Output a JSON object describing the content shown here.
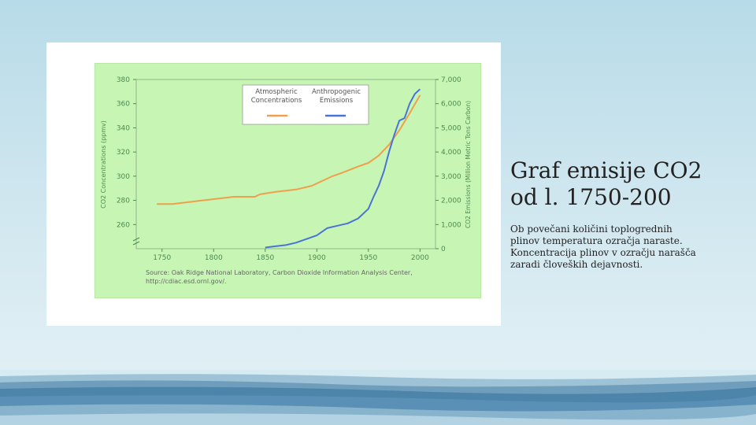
{
  "slide": {
    "title_line1": " Graf emisije CO2",
    "title_line2": "od l. 1750-200",
    "body": " Ob povečani količini toplogrednih\nplinov temperatura ozračja naraste.\nKoncentracija plinov v ozračju narašča\nzaradi človeških dejavnosti."
  },
  "chart_data": {
    "type": "line",
    "xlabel": "",
    "ylabel": "CO2 Concentrations (ppmv)",
    "y2label": "CO2 Emissions (Million Metric Tons Carbon)",
    "xlim": [
      1725,
      2015
    ],
    "ylim": [
      240,
      380
    ],
    "y2lim": [
      0,
      7000
    ],
    "x_ticks": [
      "1750",
      "1800",
      "1850",
      "1900",
      "1950",
      "2000"
    ],
    "y_ticks": [
      "380",
      "360",
      "340",
      "320",
      "300",
      "280",
      "260"
    ],
    "y2_ticks": [
      "7,000",
      "6,000",
      "5,000",
      "4,000",
      "3,000",
      "2,000",
      "1,000",
      "0"
    ],
    "legend": {
      "col1": "Atmospheric\nConcentrations",
      "col2": "Anthropogenic\nEmissions",
      "placement": "top-right"
    },
    "series": [
      {
        "name": "Atmospheric Concentrations",
        "axis": "left",
        "color": "#f0a04a",
        "x": [
          1745,
          1760,
          1780,
          1800,
          1820,
          1840,
          1845,
          1860,
          1880,
          1895,
          1905,
          1915,
          1925,
          1940,
          1950,
          1960,
          1970,
          1980,
          1990,
          2000
        ],
        "y": [
          277,
          277,
          279,
          281,
          283,
          283,
          285,
          287,
          289,
          292,
          296,
          300,
          303,
          308,
          311,
          317,
          326,
          338,
          352,
          367
        ]
      },
      {
        "name": "Anthropogenic Emissions",
        "axis": "right",
        "color": "#4a73d8",
        "x": [
          1850,
          1860,
          1870,
          1880,
          1890,
          1900,
          1910,
          1920,
          1930,
          1940,
          1950,
          1955,
          1960,
          1965,
          1970,
          1975,
          1980,
          1985,
          1990,
          1995,
          2000
        ],
        "y": [
          50,
          100,
          150,
          250,
          400,
          550,
          850,
          950,
          1050,
          1250,
          1650,
          2150,
          2600,
          3200,
          4000,
          4700,
          5300,
          5400,
          6000,
          6400,
          6600
        ]
      }
    ],
    "source_line1": "Source: Oak Ridge National Laboratory, Carbon Dioxide Information Analysis Center,",
    "source_line2": "http://cdiac.esd.ornl.gov/."
  }
}
